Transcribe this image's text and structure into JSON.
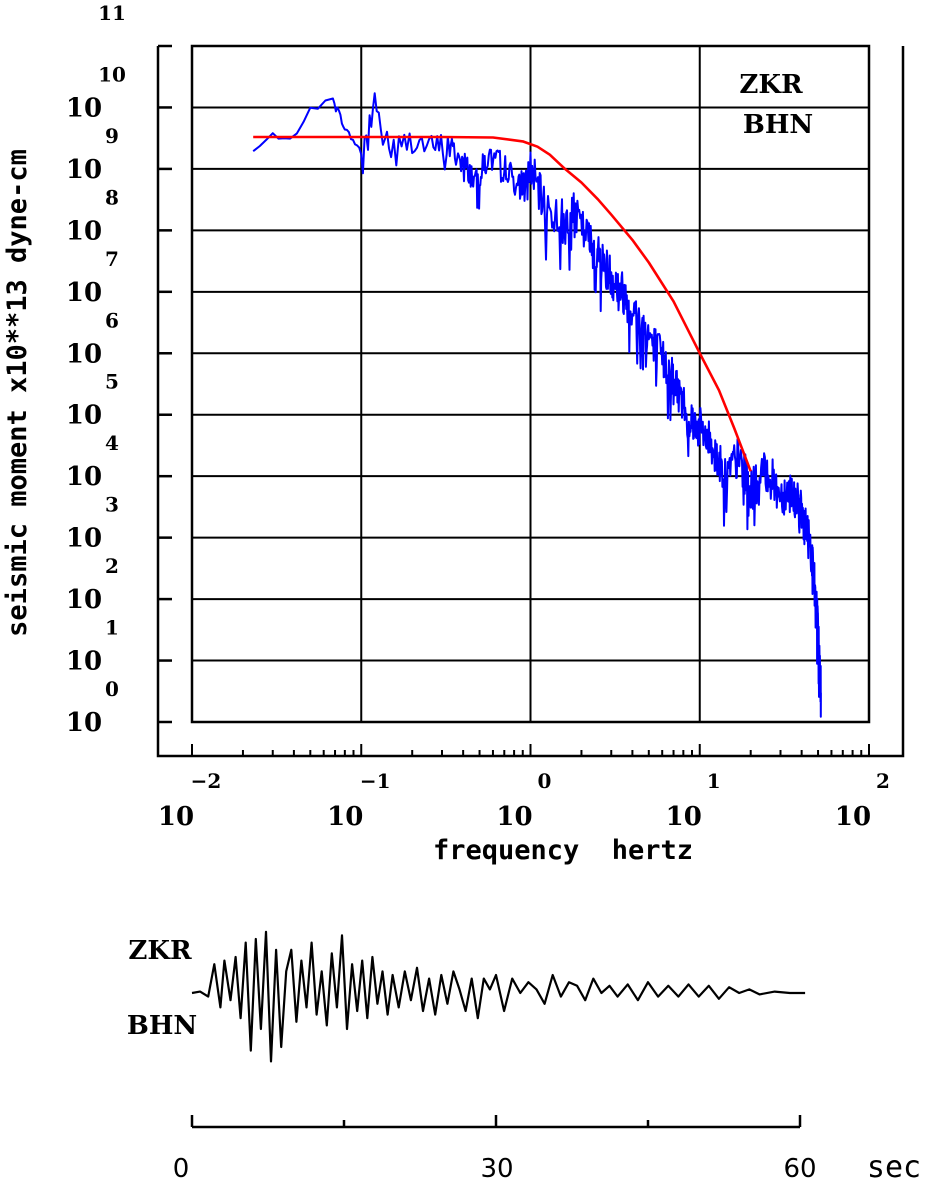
{
  "chart_data": [
    {
      "type": "line",
      "title": "",
      "xlabel": "frequency  hertz",
      "ylabel": "seismic moment x10**13 dyne-cm",
      "x_scale": "log",
      "y_scale": "log",
      "xlim": [
        0.01,
        100
      ],
      "ylim": [
        1,
        100000000000
      ],
      "grid": true,
      "station_label": [
        "ZKR",
        "BHN"
      ],
      "x_ticks": [
        {
          "mant": "10",
          "exp": "−2"
        },
        {
          "mant": "10",
          "exp": "−1"
        },
        {
          "mant": "10",
          "exp": "0"
        },
        {
          "mant": "10",
          "exp": "1"
        },
        {
          "mant": "10",
          "exp": "2"
        }
      ],
      "y_ticks": [
        {
          "mant": "10",
          "exp": "0"
        },
        {
          "mant": "10",
          "exp": "1"
        },
        {
          "mant": "10",
          "exp": "2"
        },
        {
          "mant": "10",
          "exp": "3"
        },
        {
          "mant": "10",
          "exp": "4"
        },
        {
          "mant": "10",
          "exp": "5"
        },
        {
          "mant": "10",
          "exp": "6"
        },
        {
          "mant": "10",
          "exp": "7"
        },
        {
          "mant": "10",
          "exp": "8"
        },
        {
          "mant": "10",
          "exp": "9"
        },
        {
          "mant": "10",
          "exp": "10"
        },
        {
          "mant": "",
          "exp": "11"
        }
      ],
      "series": [
        {
          "color": "#0000ff",
          "x": [
            0.023,
            0.03,
            0.038,
            0.05,
            0.068,
            0.08,
            0.1,
            0.12,
            0.15,
            0.2,
            0.26,
            0.32,
            0.4,
            0.48,
            0.55,
            0.7,
            0.85,
            1.0,
            1.2,
            1.5,
            1.8,
            2.2,
            2.6,
            3.0,
            3.5,
            4.2,
            5.0,
            6.0,
            7.0,
            8.5,
            10.0,
            12.0,
            14.0,
            17.0,
            20.0,
            25.0,
            30.0,
            35.0,
            40.0,
            45.0,
            48.0,
            50.0,
            52.0
          ],
          "y": [
            1900000000,
            3500000000,
            3300000000,
            9000000000,
            15000000000,
            4500000000,
            1900000000,
            11000000000,
            2000000000,
            3000000000,
            2200000000,
            2500000000,
            1300000000,
            600000000,
            1500000000,
            1200000000,
            500000000,
            1000000000,
            250000000,
            150000000,
            180000000,
            70000000,
            35000000,
            18000000,
            10000000,
            4000000,
            2000000,
            800000,
            400000,
            100000,
            60000,
            30000,
            10000,
            20000,
            6000,
            12000,
            5000,
            6000,
            2500,
            800,
            150,
            30,
            3
          ]
        },
        {
          "color": "#ff0000",
          "x": [
            0.023,
            0.05,
            0.1,
            0.3,
            0.6,
            0.9,
            1.1,
            1.3,
            1.6,
            2.0,
            2.5,
            3.0,
            4.0,
            5.0,
            7.0,
            10.0,
            13.0,
            16.0,
            20.0
          ],
          "y": [
            3300000000,
            3300000000,
            3300000000,
            3300000000,
            3250000000,
            2800000000,
            2300000000,
            1700000000,
            1000000000,
            600000000,
            320000000,
            180000000,
            70000000,
            30000000,
            7000000,
            1000000,
            250000,
            60000,
            12000
          ]
        }
      ]
    },
    {
      "type": "line",
      "title": "",
      "station_label": [
        "ZKR",
        "BHN"
      ],
      "xlabel": "",
      "x_ticks": [
        "0",
        "30",
        "60"
      ],
      "x_unit": "sec",
      "xlim": [
        0,
        60
      ],
      "series": [
        {
          "color": "#000000",
          "x": [
            0,
            0.8,
            1.6,
            2.2,
            2.8,
            3.2,
            3.8,
            4.3,
            4.8,
            5.3,
            5.8,
            6.3,
            6.8,
            7.3,
            7.8,
            8.3,
            8.8,
            9.3,
            9.8,
            10.3,
            10.8,
            11.3,
            11.8,
            12.3,
            12.8,
            13.3,
            13.8,
            14.3,
            14.8,
            15.3,
            15.8,
            16.3,
            16.8,
            17.3,
            17.8,
            18.3,
            18.8,
            19.3,
            19.8,
            20.4,
            21.0,
            21.6,
            22.2,
            22.8,
            23.4,
            24.0,
            24.6,
            25.2,
            25.8,
            26.4,
            27.0,
            27.6,
            28.2,
            28.8,
            29.4,
            30.0,
            30.8,
            31.6,
            32.4,
            33.2,
            34.0,
            34.8,
            35.6,
            36.4,
            37.2,
            38.0,
            38.8,
            39.6,
            40.4,
            41.2,
            42.0,
            43.0,
            44.0,
            45.0,
            46.0,
            47.0,
            48.0,
            49.0,
            50.0,
            51.0,
            52.0,
            53.0,
            54.0,
            55.0,
            56.0,
            57.5,
            59.0,
            60.5
          ],
          "y": [
            0.0,
            0.02,
            -0.05,
            0.4,
            -0.2,
            0.45,
            -0.1,
            0.5,
            -0.35,
            0.7,
            -0.8,
            0.75,
            -0.5,
            0.85,
            -0.95,
            0.6,
            -0.75,
            0.3,
            0.6,
            -0.4,
            0.45,
            -0.2,
            0.7,
            -0.3,
            0.3,
            -0.45,
            0.55,
            -0.2,
            0.8,
            -0.5,
            0.4,
            -0.25,
            0.45,
            -0.35,
            0.5,
            -0.15,
            0.3,
            -0.3,
            0.25,
            -0.2,
            0.3,
            -0.1,
            0.35,
            -0.25,
            0.2,
            -0.3,
            0.25,
            -0.15,
            0.3,
            0.05,
            -0.25,
            0.2,
            -0.35,
            0.2,
            0.05,
            0.25,
            -0.25,
            0.2,
            0.0,
            0.15,
            0.05,
            -0.15,
            0.25,
            -0.05,
            0.15,
            0.1,
            -0.1,
            0.2,
            0.0,
            0.1,
            -0.05,
            0.12,
            -0.1,
            0.15,
            -0.05,
            0.1,
            -0.05,
            0.12,
            -0.05,
            0.1,
            -0.08,
            0.08,
            0.0,
            0.05,
            -0.02,
            0.02,
            0.0,
            0.0
          ]
        }
      ]
    }
  ]
}
